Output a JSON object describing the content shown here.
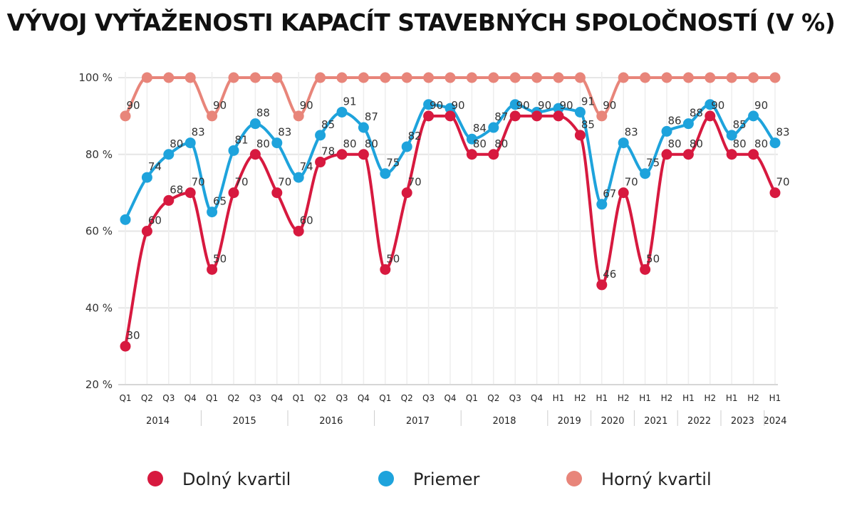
{
  "chart_data": {
    "type": "line",
    "title": "VÝVOJ VYŤAŽENOSTI KAPACÍT STAVEBNÝCH SPOLOČNOSTÍ (V %)",
    "xlabel": "",
    "ylabel": "",
    "ylim": [
      20,
      100
    ],
    "yticks": [
      20,
      40,
      60,
      80,
      100
    ],
    "ytick_labels": [
      "20 %",
      "40 %",
      "60 %",
      "80 %",
      "100 %"
    ],
    "grid": true,
    "legend_position": "bottom",
    "x": [
      "Q1",
      "Q2",
      "Q3",
      "Q4",
      "Q1",
      "Q2",
      "Q3",
      "Q4",
      "Q1",
      "Q2",
      "Q3",
      "Q4",
      "Q1",
      "Q2",
      "Q3",
      "Q4",
      "Q1",
      "Q2",
      "Q3",
      "Q4",
      "H1",
      "H2",
      "H1",
      "H2",
      "H1",
      "H2",
      "H1",
      "H2",
      "H1",
      "H2",
      "H1"
    ],
    "years": [
      {
        "label": "2014",
        "start": 0,
        "end": 3
      },
      {
        "label": "2015",
        "start": 4,
        "end": 7
      },
      {
        "label": "2016",
        "start": 8,
        "end": 11
      },
      {
        "label": "2017",
        "start": 12,
        "end": 15
      },
      {
        "label": "2018",
        "start": 16,
        "end": 19
      },
      {
        "label": "2019",
        "start": 20,
        "end": 21
      },
      {
        "label": "2020",
        "start": 22,
        "end": 23
      },
      {
        "label": "2021",
        "start": 24,
        "end": 25
      },
      {
        "label": "2022",
        "start": 26,
        "end": 27
      },
      {
        "label": "2023",
        "start": 28,
        "end": 29
      },
      {
        "label": "2024",
        "start": 30,
        "end": 30
      }
    ],
    "series": [
      {
        "name": "Horný kvartil",
        "color": "#e8857a",
        "values": [
          90,
          100,
          100,
          100,
          90,
          100,
          100,
          100,
          90,
          100,
          100,
          100,
          100,
          100,
          100,
          100,
          100,
          100,
          100,
          100,
          100,
          100,
          90,
          100,
          100,
          100,
          100,
          100,
          100,
          100,
          100
        ],
        "labels": [
          90,
          null,
          null,
          null,
          90,
          null,
          null,
          null,
          90,
          null,
          null,
          null,
          null,
          null,
          null,
          null,
          null,
          null,
          null,
          null,
          null,
          null,
          90,
          null,
          null,
          null,
          null,
          null,
          null,
          null,
          null
        ]
      },
      {
        "name": "Priemer",
        "color": "#1ea3dc",
        "values": [
          63,
          74,
          80,
          83,
          65,
          81,
          88,
          83,
          74,
          85,
          91,
          87,
          75,
          82,
          93,
          92,
          84,
          87,
          93,
          91,
          92,
          91,
          67,
          83,
          75,
          86,
          88,
          93,
          85,
          90,
          83
        ],
        "labels": [
          null,
          74,
          80,
          83,
          65,
          81,
          88,
          83,
          74,
          85,
          91,
          87,
          75,
          82,
          null,
          null,
          84,
          87,
          null,
          null,
          null,
          91,
          67,
          83,
          75,
          86,
          88,
          null,
          85,
          90,
          83
        ]
      },
      {
        "name": "Dolný kvartil",
        "color": "#d7193f",
        "values": [
          30,
          60,
          68,
          70,
          50,
          70,
          80,
          70,
          60,
          78,
          80,
          80,
          50,
          70,
          90,
          90,
          80,
          80,
          90,
          90,
          90,
          85,
          46,
          70,
          50,
          80,
          80,
          90,
          80,
          80,
          70
        ],
        "labels": [
          30,
          60,
          68,
          70,
          50,
          70,
          80,
          70,
          60,
          78,
          80,
          80,
          50,
          70,
          90,
          90,
          80,
          80,
          90,
          90,
          90,
          85,
          46,
          70,
          50,
          80,
          80,
          90,
          80,
          80,
          70
        ]
      }
    ],
    "legend": [
      {
        "name": "Dolný kvartil",
        "color": "#d7193f"
      },
      {
        "name": "Priemer",
        "color": "#1ea3dc"
      },
      {
        "name": "Horný kvartil",
        "color": "#e8857a"
      }
    ]
  }
}
